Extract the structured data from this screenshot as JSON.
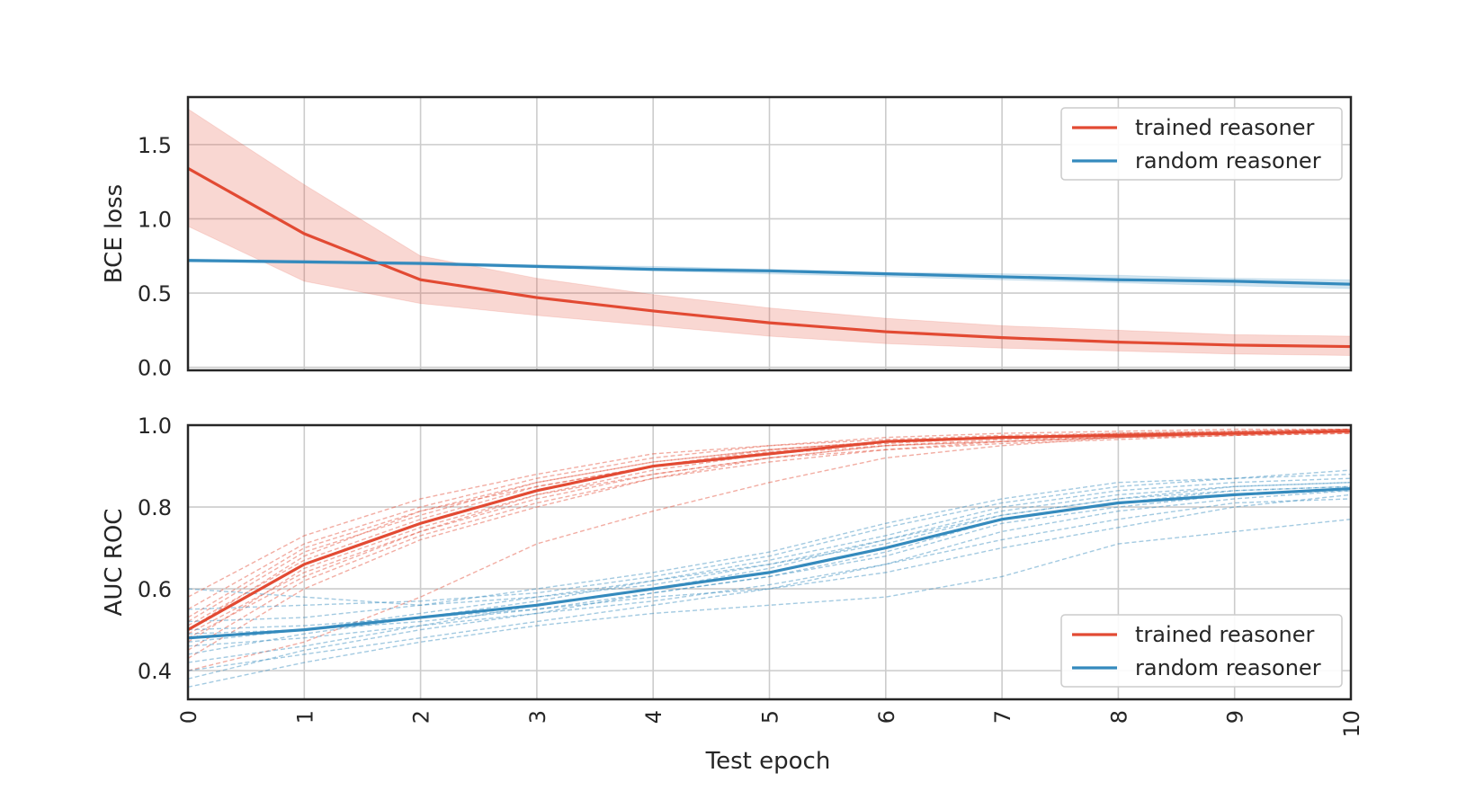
{
  "chart_data": [
    {
      "type": "line",
      "x": [
        0,
        1,
        2,
        3,
        4,
        5,
        6,
        7,
        8,
        9,
        10
      ],
      "xlim": [
        0,
        10
      ],
      "xticks": [
        "0",
        "1",
        "2",
        "3",
        "4",
        "5",
        "6",
        "7",
        "8",
        "9",
        "10"
      ],
      "xlabel": "",
      "ylabel": "BCE loss",
      "ylim": [
        -0.02,
        1.82
      ],
      "yticks": [
        "0.0",
        "0.5",
        "1.0",
        "1.5"
      ],
      "grid": true,
      "legend_position": "upper right",
      "series": [
        {
          "name": "trained reasoner",
          "color": "#e24a33",
          "values": [
            1.34,
            0.9,
            0.59,
            0.47,
            0.38,
            0.3,
            0.24,
            0.2,
            0.17,
            0.15,
            0.14
          ],
          "band_upper": [
            1.74,
            1.23,
            0.75,
            0.6,
            0.49,
            0.4,
            0.33,
            0.28,
            0.25,
            0.22,
            0.21
          ],
          "band_lower": [
            0.95,
            0.58,
            0.43,
            0.35,
            0.28,
            0.21,
            0.16,
            0.13,
            0.11,
            0.09,
            0.08
          ]
        },
        {
          "name": "random reasoner",
          "color": "#348abd",
          "values": [
            0.72,
            0.71,
            0.7,
            0.68,
            0.66,
            0.65,
            0.63,
            0.61,
            0.59,
            0.58,
            0.56
          ],
          "band_upper": [
            0.73,
            0.72,
            0.71,
            0.69,
            0.68,
            0.66,
            0.64,
            0.63,
            0.62,
            0.6,
            0.59
          ],
          "band_lower": [
            0.71,
            0.7,
            0.69,
            0.67,
            0.65,
            0.63,
            0.61,
            0.59,
            0.57,
            0.55,
            0.53
          ]
        }
      ]
    },
    {
      "type": "line",
      "x": [
        0,
        1,
        2,
        3,
        4,
        5,
        6,
        7,
        8,
        9,
        10
      ],
      "xlim": [
        0,
        10
      ],
      "xticks": [
        "0",
        "1",
        "2",
        "3",
        "4",
        "5",
        "6",
        "7",
        "8",
        "9",
        "10"
      ],
      "xlabel": "Test epoch",
      "ylabel": "AUC ROC",
      "ylim": [
        0.33,
        1.0
      ],
      "yticks": [
        "0.4",
        "0.6",
        "0.8",
        "1.0"
      ],
      "grid": true,
      "legend_position": "lower right",
      "series": [
        {
          "name": "trained reasoner",
          "color": "#e24a33",
          "values": [
            0.5,
            0.66,
            0.76,
            0.84,
            0.9,
            0.93,
            0.96,
            0.97,
            0.975,
            0.98,
            0.985
          ],
          "runs": [
            [
              0.47,
              0.65,
              0.75,
              0.83,
              0.89,
              0.93,
              0.95,
              0.965,
              0.97,
              0.98,
              0.985
            ],
            [
              0.52,
              0.69,
              0.78,
              0.86,
              0.91,
              0.94,
              0.96,
              0.97,
              0.98,
              0.985,
              0.99
            ],
            [
              0.45,
              0.62,
              0.73,
              0.81,
              0.87,
              0.92,
              0.95,
              0.96,
              0.97,
              0.975,
              0.98
            ],
            [
              0.55,
              0.71,
              0.8,
              0.87,
              0.92,
              0.95,
              0.965,
              0.975,
              0.98,
              0.985,
              0.99
            ],
            [
              0.49,
              0.64,
              0.74,
              0.82,
              0.88,
              0.92,
              0.94,
              0.955,
              0.965,
              0.975,
              0.98
            ],
            [
              0.51,
              0.67,
              0.77,
              0.85,
              0.9,
              0.94,
              0.96,
              0.97,
              0.98,
              0.985,
              0.99
            ],
            [
              0.43,
              0.6,
              0.72,
              0.8,
              0.87,
              0.91,
              0.94,
              0.96,
              0.97,
              0.975,
              0.985
            ],
            [
              0.58,
              0.73,
              0.82,
              0.88,
              0.93,
              0.95,
              0.97,
              0.98,
              0.985,
              0.99,
              0.99
            ],
            [
              0.4,
              0.47,
              0.58,
              0.71,
              0.79,
              0.86,
              0.92,
              0.95,
              0.97,
              0.98,
              0.985
            ],
            [
              0.5,
              0.68,
              0.79,
              0.86,
              0.91,
              0.94,
              0.96,
              0.97,
              0.975,
              0.98,
              0.985
            ],
            [
              0.48,
              0.63,
              0.74,
              0.83,
              0.88,
              0.92,
              0.95,
              0.96,
              0.97,
              0.98,
              0.985
            ],
            [
              0.53,
              0.7,
              0.79,
              0.85,
              0.9,
              0.935,
              0.955,
              0.97,
              0.975,
              0.98,
              0.99
            ]
          ]
        },
        {
          "name": "random reasoner",
          "color": "#348abd",
          "values": [
            0.48,
            0.5,
            0.53,
            0.56,
            0.6,
            0.64,
            0.7,
            0.77,
            0.81,
            0.83,
            0.845
          ],
          "runs": [
            [
              0.44,
              0.49,
              0.53,
              0.57,
              0.62,
              0.67,
              0.73,
              0.8,
              0.84,
              0.86,
              0.87
            ],
            [
              0.52,
              0.53,
              0.56,
              0.6,
              0.64,
              0.69,
              0.76,
              0.82,
              0.86,
              0.87,
              0.88
            ],
            [
              0.4,
              0.44,
              0.48,
              0.52,
              0.56,
              0.6,
              0.66,
              0.74,
              0.79,
              0.82,
              0.84
            ],
            [
              0.5,
              0.51,
              0.53,
              0.55,
              0.59,
              0.63,
              0.69,
              0.77,
              0.81,
              0.84,
              0.85
            ],
            [
              0.36,
              0.42,
              0.47,
              0.51,
              0.54,
              0.56,
              0.58,
              0.63,
              0.71,
              0.74,
              0.77
            ],
            [
              0.47,
              0.5,
              0.54,
              0.58,
              0.62,
              0.66,
              0.71,
              0.78,
              0.82,
              0.85,
              0.86
            ],
            [
              0.55,
              0.56,
              0.57,
              0.59,
              0.63,
              0.68,
              0.75,
              0.81,
              0.85,
              0.87,
              0.89
            ],
            [
              0.42,
              0.46,
              0.51,
              0.56,
              0.6,
              0.65,
              0.72,
              0.79,
              0.83,
              0.85,
              0.86
            ],
            [
              0.49,
              0.5,
              0.52,
              0.55,
              0.58,
              0.6,
              0.64,
              0.7,
              0.75,
              0.8,
              0.83
            ],
            [
              0.6,
              0.58,
              0.56,
              0.58,
              0.61,
              0.66,
              0.72,
              0.78,
              0.82,
              0.84,
              0.85
            ],
            [
              0.38,
              0.45,
              0.5,
              0.54,
              0.59,
              0.63,
              0.68,
              0.76,
              0.8,
              0.83,
              0.84
            ],
            [
              0.46,
              0.48,
              0.51,
              0.54,
              0.57,
              0.61,
              0.66,
              0.72,
              0.77,
              0.81,
              0.82
            ]
          ]
        }
      ]
    }
  ]
}
